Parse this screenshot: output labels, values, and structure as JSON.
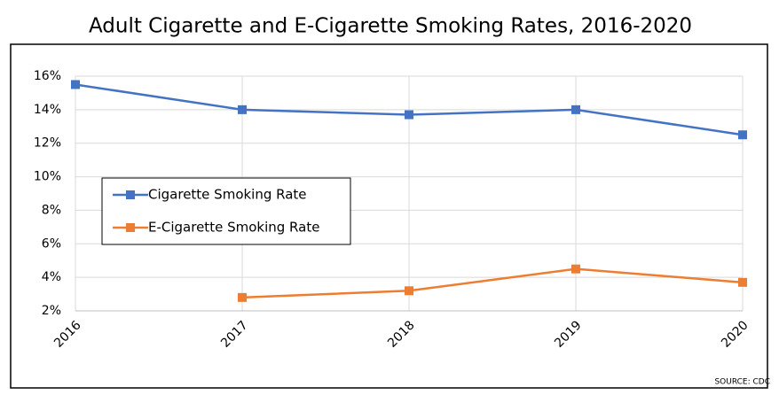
{
  "chart_data": {
    "type": "line",
    "title": "Adult Cigarette and E-Cigarette Smoking Rates, 2016-2020",
    "categories": [
      "2016",
      "2017",
      "2018",
      "2019",
      "2020"
    ],
    "series": [
      {
        "name": "Cigarette Smoking Rate",
        "color": "#4472c4",
        "values": [
          15.5,
          14.0,
          13.7,
          14.0,
          12.5
        ]
      },
      {
        "name": "E-Cigarette Smoking Rate",
        "color": "#ed7d31",
        "values": [
          null,
          2.8,
          3.2,
          4.5,
          3.7
        ]
      }
    ],
    "ylim": [
      2,
      16
    ],
    "yticks": [
      {
        "value": 2,
        "label": "2%"
      },
      {
        "value": 4,
        "label": "4%"
      },
      {
        "value": 6,
        "label": "6%"
      },
      {
        "value": 8,
        "label": "8%"
      },
      {
        "value": 10,
        "label": "10%"
      },
      {
        "value": 12,
        "label": "12%"
      },
      {
        "value": 14,
        "label": "14%"
      },
      {
        "value": 16,
        "label": "16%"
      }
    ],
    "grid": true,
    "legend": "left",
    "source": "SOURCE: CDC"
  }
}
